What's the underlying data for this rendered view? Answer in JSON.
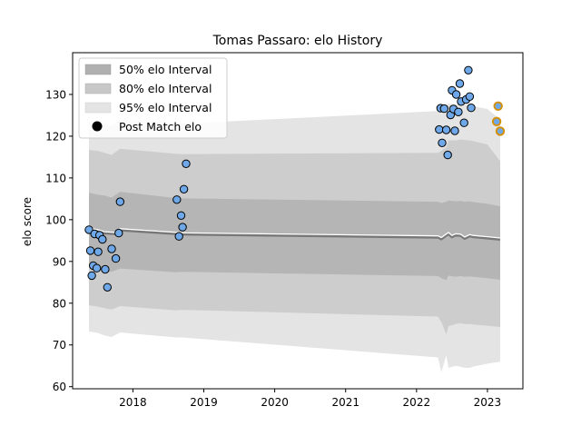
{
  "chart_data": {
    "type": "scatter",
    "title": "Tomas Passaro: elo History",
    "xlabel": "",
    "ylabel": "elo score",
    "xlim": [
      2017.15,
      2023.5
    ],
    "ylim": [
      59.5,
      140
    ],
    "x_ticks": [
      2018,
      2019,
      2020,
      2021,
      2022,
      2023
    ],
    "x_tick_labels": [
      "2018",
      "2019",
      "2020",
      "2021",
      "2022",
      "2023"
    ],
    "y_ticks": [
      60,
      70,
      80,
      90,
      100,
      110,
      120,
      130
    ],
    "y_tick_labels": [
      "60",
      "70",
      "80",
      "90",
      "100",
      "110",
      "120",
      "130"
    ],
    "grid": false,
    "legend_position": "upper-left",
    "legend": [
      {
        "label": "50% elo Interval",
        "kind": "patch",
        "color": "#b0b0b0"
      },
      {
        "label": "80% elo Interval",
        "kind": "patch",
        "color": "#c8c8c8"
      },
      {
        "label": "95% elo Interval",
        "kind": "patch",
        "color": "#e4e4e4"
      },
      {
        "label": "Post Match elo",
        "kind": "marker",
        "color": "#000000"
      }
    ],
    "colors": {
      "band50": "#b5b5b5",
      "band80": "#cdcdcd",
      "band95": "#e4e4e4",
      "mean_line": "#777777",
      "mean_highlight": "#ffffff",
      "point_fill": "#6fa8e8",
      "point_edge": "#000000",
      "recent_edge": "#d4900a"
    },
    "mean_series": {
      "x": [
        2017.38,
        2017.5,
        2017.6,
        2017.78,
        2017.82,
        2018.65,
        2018.75,
        2022.3,
        2022.35,
        2022.4,
        2022.45,
        2022.5,
        2022.55,
        2022.62,
        2022.68,
        2022.75,
        2022.8,
        2023.0,
        2023.18
      ],
      "y": [
        97.6,
        97.3,
        96.8,
        96.6,
        97.5,
        96.6,
        96.5,
        95.8,
        95.4,
        96.0,
        96.6,
        95.9,
        96.3,
        96.2,
        95.5,
        96.1,
        95.9,
        95.6,
        95.3
      ]
    },
    "band_x": [
      2017.38,
      2017.5,
      2017.6,
      2017.7,
      2017.82,
      2018.6,
      2018.7,
      2022.3,
      2022.35,
      2022.42,
      2022.45,
      2022.55,
      2022.62,
      2022.68,
      2022.75,
      2022.8,
      2023.0,
      2023.18
    ],
    "band50_upper": [
      106.5,
      106,
      105.8,
      105.3,
      106.7,
      105.2,
      105.1,
      104.3,
      104.0,
      104.3,
      104.6,
      104.4,
      104.5,
      104.3,
      104.4,
      104.2,
      103.8,
      103.2
    ],
    "band50_lower": [
      88.5,
      88.3,
      87.8,
      87.5,
      88.3,
      87.4,
      87.5,
      86.5,
      86.0,
      85.5,
      86.6,
      86.3,
      86.5,
      86.3,
      86.4,
      86.3,
      86.0,
      85.6
    ],
    "band80_upper": [
      116.7,
      116.5,
      116.0,
      115.5,
      117.0,
      115.8,
      115.7,
      116.0,
      116.5,
      117.3,
      119.0,
      119.0,
      119.2,
      119.1,
      119.0,
      118.8,
      118.0,
      114.0
    ],
    "band80_lower": [
      79.5,
      79.2,
      78.8,
      78.5,
      79.3,
      78.3,
      78.4,
      76.8,
      75.5,
      72.5,
      74.5,
      75.0,
      75.2,
      75.0,
      75.0,
      74.9,
      74.6,
      74.3
    ],
    "band95_upper": [
      123.5,
      123.3,
      123.0,
      122.5,
      124.0,
      123.1,
      123.0,
      126.0,
      126.5,
      127.5,
      127.8,
      127.6,
      127.8,
      127.6,
      127.5,
      127.2,
      126.5,
      124.0
    ],
    "band95_lower": [
      73.2,
      72.9,
      72.3,
      71.9,
      73.0,
      71.8,
      71.8,
      67.0,
      63.5,
      67.5,
      64.5,
      65.0,
      64.8,
      64.5,
      64.5,
      64.8,
      65.5,
      66.0
    ],
    "points": [
      {
        "x": 2017.38,
        "y": 97.6
      },
      {
        "x": 2017.4,
        "y": 92.6
      },
      {
        "x": 2017.42,
        "y": 86.6
      },
      {
        "x": 2017.44,
        "y": 89.0
      },
      {
        "x": 2017.46,
        "y": 96.6
      },
      {
        "x": 2017.49,
        "y": 88.4
      },
      {
        "x": 2017.51,
        "y": 92.3
      },
      {
        "x": 2017.53,
        "y": 96.3
      },
      {
        "x": 2017.57,
        "y": 95.3
      },
      {
        "x": 2017.61,
        "y": 88.1
      },
      {
        "x": 2017.64,
        "y": 83.8
      },
      {
        "x": 2017.7,
        "y": 93.0
      },
      {
        "x": 2017.76,
        "y": 90.7
      },
      {
        "x": 2017.8,
        "y": 96.8
      },
      {
        "x": 2017.82,
        "y": 104.3
      },
      {
        "x": 2018.62,
        "y": 104.8
      },
      {
        "x": 2018.65,
        "y": 96.0
      },
      {
        "x": 2018.68,
        "y": 101.0
      },
      {
        "x": 2018.7,
        "y": 98.2
      },
      {
        "x": 2018.72,
        "y": 107.3
      },
      {
        "x": 2018.75,
        "y": 113.4
      },
      {
        "x": 2022.32,
        "y": 121.6
      },
      {
        "x": 2022.34,
        "y": 126.7
      },
      {
        "x": 2022.36,
        "y": 118.4
      },
      {
        "x": 2022.39,
        "y": 126.6
      },
      {
        "x": 2022.42,
        "y": 121.5
      },
      {
        "x": 2022.44,
        "y": 115.5
      },
      {
        "x": 2022.48,
        "y": 125.1
      },
      {
        "x": 2022.5,
        "y": 131.0
      },
      {
        "x": 2022.52,
        "y": 126.5
      },
      {
        "x": 2022.54,
        "y": 121.3
      },
      {
        "x": 2022.56,
        "y": 130.0
      },
      {
        "x": 2022.59,
        "y": 125.8
      },
      {
        "x": 2022.61,
        "y": 132.6
      },
      {
        "x": 2022.63,
        "y": 128.3
      },
      {
        "x": 2022.67,
        "y": 123.2
      },
      {
        "x": 2022.7,
        "y": 128.8
      },
      {
        "x": 2022.73,
        "y": 135.8
      },
      {
        "x": 2022.75,
        "y": 129.5
      },
      {
        "x": 2022.77,
        "y": 126.8
      }
    ],
    "recent_points": [
      {
        "x": 2023.15,
        "y": 127.2
      },
      {
        "x": 2023.13,
        "y": 123.5
      },
      {
        "x": 2023.18,
        "y": 121.2
      }
    ]
  }
}
